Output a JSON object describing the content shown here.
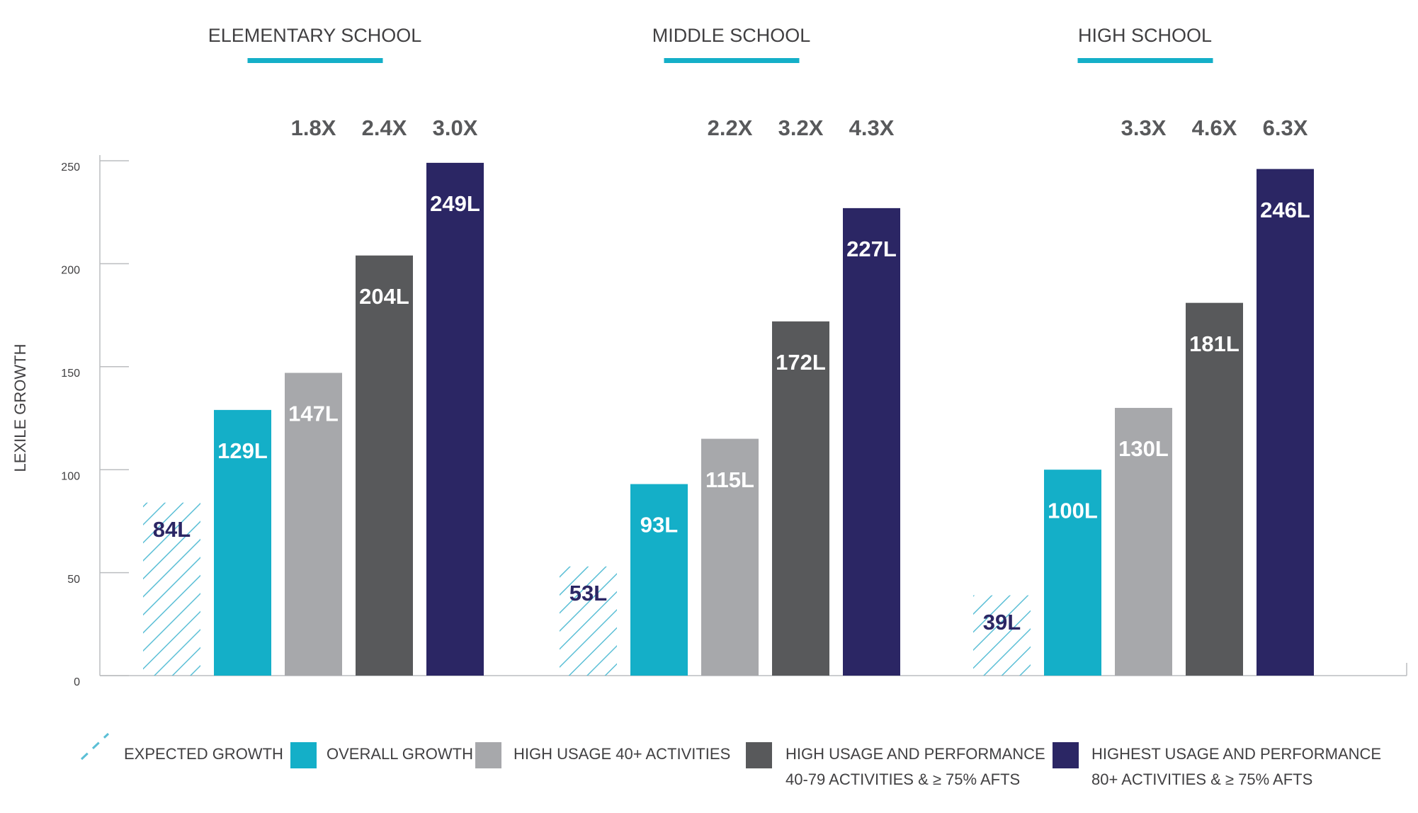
{
  "chart_data": {
    "type": "bar",
    "categories": [
      "ELEMENTARY SCHOOL",
      "MIDDLE SCHOOL",
      "HIGH SCHOOL"
    ],
    "y_label": "LEXILE GROWTH",
    "ylim": [
      0,
      250
    ],
    "yticks": [
      0,
      50,
      100,
      150,
      200,
      250
    ],
    "accent_color": "#14afc8",
    "series": [
      {
        "name": "EXPECTED GROWTH",
        "color": "#5bbfd6",
        "pattern": "hatch",
        "label_color": "#2b2664",
        "values": [
          84,
          53,
          39
        ],
        "value_labels": [
          "84L",
          "53L",
          "39L"
        ]
      },
      {
        "name": "OVERALL GROWTH",
        "color": "#14afc8",
        "label_color": "#ffffff",
        "values": [
          129,
          93,
          100
        ],
        "value_labels": [
          "129L",
          "93L",
          "100L"
        ]
      },
      {
        "name": "HIGH USAGE 40+ ACTIVITIES",
        "color": "#a7a8ab",
        "label_color": "#ffffff",
        "values": [
          147,
          115,
          130
        ],
        "value_labels": [
          "147L",
          "115L",
          "130L"
        ],
        "multipliers": [
          "1.8X",
          "2.2X",
          "3.3X"
        ]
      },
      {
        "name": "HIGH USAGE AND PERFORMANCE",
        "subtitle": "40-79 ACTIVITIES & ≥ 75% AFTS",
        "color": "#58595b",
        "label_color": "#ffffff",
        "values": [
          204,
          172,
          181
        ],
        "value_labels": [
          "204L",
          "172L",
          "181L"
        ],
        "multipliers": [
          "2.4X",
          "3.2X",
          "4.6X"
        ]
      },
      {
        "name": "HIGHEST USAGE AND PERFORMANCE",
        "subtitle": "80+ ACTIVITIES & ≥ 75% AFTS",
        "color": "#2b2664",
        "label_color": "#ffffff",
        "values": [
          249,
          227,
          246
        ],
        "value_labels": [
          "249L",
          "227L",
          "246L"
        ],
        "multipliers": [
          "3.0X",
          "4.3X",
          "6.3X"
        ]
      }
    ]
  }
}
